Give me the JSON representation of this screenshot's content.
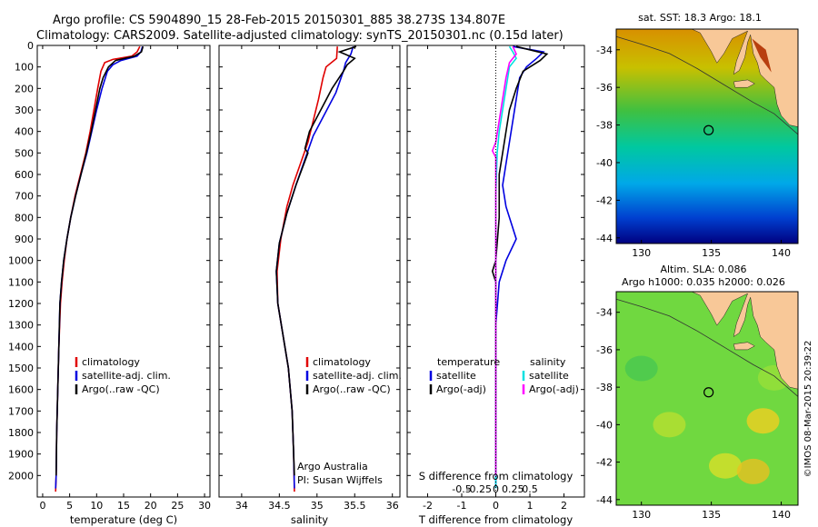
{
  "header": {
    "line1": "Argo profile: CS 5904890_15 28-Feb-2015 20150301_885 38.273S 134.807E",
    "line2": "Climatology: CARS2009. Satellite-adjusted climatology: synTS_20150301.nc (0.15d later)"
  },
  "colors": {
    "climatology": "#e00000",
    "satellite": "#0000e0",
    "argo": "#000000",
    "argo_s": "#ff00ff",
    "sat_s": "#00e0e0",
    "land": "#f8c898"
  },
  "chart_data": [
    {
      "type": "line",
      "name": "temperature-profile",
      "xlabel": "temperature (deg C)",
      "ylabel": "",
      "xlim": [
        -1,
        31
      ],
      "ylim": [
        2100,
        0
      ],
      "xticks": [
        0,
        5,
        10,
        15,
        20,
        25,
        30
      ],
      "yticks": [
        0,
        100,
        200,
        300,
        400,
        500,
        600,
        700,
        800,
        900,
        1000,
        1100,
        1200,
        1300,
        1400,
        1500,
        1600,
        1700,
        1800,
        1900,
        2000
      ],
      "legend": [
        "climatology",
        "satellite-adj. clim.",
        "Argo(..raw -QC)"
      ],
      "series": [
        {
          "name": "climatology",
          "color": "#e00000",
          "points": [
            [
              18.0,
              5
            ],
            [
              17.5,
              30
            ],
            [
              16.5,
              50
            ],
            [
              13.0,
              65
            ],
            [
              11.5,
              80
            ],
            [
              10.8,
              120
            ],
            [
              10.2,
              200
            ],
            [
              9.5,
              300
            ],
            [
              8.8,
              400
            ],
            [
              8.0,
              500
            ],
            [
              7.0,
              600
            ],
            [
              6.0,
              700
            ],
            [
              5.2,
              800
            ],
            [
              4.5,
              900
            ],
            [
              4.0,
              1000
            ],
            [
              3.6,
              1100
            ],
            [
              3.3,
              1200
            ],
            [
              3.0,
              1400
            ],
            [
              2.8,
              1600
            ],
            [
              2.6,
              1800
            ],
            [
              2.5,
              2000
            ],
            [
              2.4,
              2075
            ]
          ]
        },
        {
          "name": "satellite-adj. clim.",
          "color": "#0000e0",
          "points": [
            [
              18.5,
              5
            ],
            [
              18.2,
              30
            ],
            [
              17.5,
              50
            ],
            [
              14.5,
              70
            ],
            [
              13.0,
              90
            ],
            [
              12.0,
              120
            ],
            [
              11.0,
              200
            ],
            [
              10.0,
              300
            ],
            [
              9.1,
              400
            ],
            [
              8.2,
              500
            ],
            [
              7.1,
              600
            ],
            [
              6.1,
              700
            ],
            [
              5.2,
              800
            ],
            [
              4.5,
              900
            ],
            [
              3.9,
              1000
            ],
            [
              3.5,
              1100
            ],
            [
              3.2,
              1200
            ],
            [
              3.0,
              1400
            ],
            [
              2.8,
              1600
            ],
            [
              2.6,
              1800
            ],
            [
              2.5,
              2000
            ],
            [
              2.4,
              2060
            ]
          ]
        },
        {
          "name": "Argo(..raw -QC)",
          "color": "#000000",
          "points": [
            [
              18.6,
              5
            ],
            [
              18.3,
              30
            ],
            [
              17.0,
              50
            ],
            [
              13.5,
              70
            ],
            [
              12.2,
              100
            ],
            [
              11.2,
              150
            ],
            [
              10.6,
              200
            ],
            [
              9.8,
              300
            ],
            [
              9.0,
              400
            ],
            [
              8.1,
              500
            ],
            [
              7.1,
              600
            ],
            [
              6.1,
              700
            ],
            [
              5.2,
              800
            ],
            [
              4.5,
              900
            ],
            [
              3.9,
              1000
            ],
            [
              3.5,
              1100
            ],
            [
              3.2,
              1200
            ],
            [
              3.0,
              1400
            ],
            [
              2.8,
              1600
            ],
            [
              2.6,
              1800
            ],
            [
              2.5,
              2000
            ]
          ]
        }
      ]
    },
    {
      "type": "line",
      "name": "salinity-profile",
      "xlabel": "salinity",
      "ylabel": "",
      "xlim": [
        33.7,
        36.1
      ],
      "ylim": [
        2100,
        0
      ],
      "xticks": [
        34,
        34.5,
        35,
        35.5,
        36
      ],
      "xticklabels": [
        "34",
        "34.5",
        "35",
        "35.5",
        "36"
      ],
      "legend": [
        "climatology",
        "satellite-adj. clim.",
        "Argo(..raw -QC)"
      ],
      "annotation": [
        "Argo Australia",
        "PI: Susan Wijffels"
      ],
      "series": [
        {
          "name": "climatology",
          "color": "#e00000",
          "points": [
            [
              35.27,
              5
            ],
            [
              35.26,
              60
            ],
            [
              35.12,
              100
            ],
            [
              35.08,
              150
            ],
            [
              35.02,
              250
            ],
            [
              34.95,
              350
            ],
            [
              34.88,
              450
            ],
            [
              34.78,
              550
            ],
            [
              34.68,
              650
            ],
            [
              34.6,
              750
            ],
            [
              34.52,
              900
            ],
            [
              34.47,
              1050
            ],
            [
              34.48,
              1200
            ],
            [
              34.55,
              1350
            ],
            [
              34.62,
              1500
            ],
            [
              34.67,
              1700
            ],
            [
              34.69,
              1900
            ],
            [
              34.7,
              2075
            ]
          ]
        },
        {
          "name": "satellite-adj. clim.",
          "color": "#0000e0",
          "points": [
            [
              35.48,
              5
            ],
            [
              35.45,
              40
            ],
            [
              35.38,
              80
            ],
            [
              35.35,
              120
            ],
            [
              35.25,
              220
            ],
            [
              35.1,
              320
            ],
            [
              34.95,
              420
            ],
            [
              34.85,
              520
            ],
            [
              34.72,
              650
            ],
            [
              34.6,
              780
            ],
            [
              34.5,
              920
            ],
            [
              34.46,
              1050
            ],
            [
              34.48,
              1200
            ],
            [
              34.55,
              1350
            ],
            [
              34.62,
              1500
            ],
            [
              34.67,
              1700
            ],
            [
              34.69,
              1900
            ],
            [
              34.7,
              2060
            ]
          ]
        },
        {
          "name": "Argo(..raw -QC)",
          "color": "#000000",
          "points": [
            [
              35.52,
              5
            ],
            [
              35.3,
              30
            ],
            [
              35.5,
              60
            ],
            [
              35.4,
              90
            ],
            [
              35.35,
              120
            ],
            [
              35.2,
              200
            ],
            [
              35.05,
              300
            ],
            [
              34.9,
              400
            ],
            [
              34.84,
              480
            ],
            [
              34.88,
              500
            ],
            [
              34.72,
              650
            ],
            [
              34.6,
              780
            ],
            [
              34.5,
              920
            ],
            [
              34.46,
              1050
            ],
            [
              34.48,
              1200
            ],
            [
              34.55,
              1350
            ],
            [
              34.62,
              1500
            ],
            [
              34.67,
              1700
            ],
            [
              34.69,
              1900
            ],
            [
              34.7,
              2000
            ]
          ]
        }
      ]
    },
    {
      "type": "line",
      "name": "difference-profile",
      "xlabel": "T difference from climatology",
      "xlabel2": "S difference from climatology",
      "xlim": [
        -2.6,
        2.6
      ],
      "ylim": [
        2100,
        0
      ],
      "xticks": [
        -2,
        -1,
        0,
        1,
        2
      ],
      "xticks2": [
        -0.5,
        -0.25,
        0,
        0.25,
        0.5
      ],
      "xticklabels2": [
        "-0.5",
        "-0.25",
        "0",
        "0.25",
        "0.5"
      ],
      "legend_left": {
        "title": "temperature",
        "items": [
          "satellite",
          "Argo(-adj)"
        ]
      },
      "legend_right": {
        "title": "salinity",
        "items": [
          "satellite",
          "Argo(-adj)"
        ]
      },
      "series": [
        {
          "name": "T satellite",
          "color": "#0000e0",
          "points": [
            [
              0.5,
              5
            ],
            [
              1.4,
              30
            ],
            [
              1.2,
              60
            ],
            [
              0.9,
              100
            ],
            [
              0.7,
              150
            ],
            [
              0.6,
              250
            ],
            [
              0.5,
              350
            ],
            [
              0.4,
              450
            ],
            [
              0.3,
              550
            ],
            [
              0.2,
              650
            ],
            [
              0.3,
              750
            ],
            [
              0.5,
              850
            ],
            [
              0.6,
              900
            ],
            [
              0.3,
              1000
            ],
            [
              0.1,
              1100
            ],
            [
              0.0,
              1300
            ],
            [
              0.0,
              2060
            ]
          ]
        },
        {
          "name": "T Argo(-adj)",
          "color": "#000000",
          "points": [
            [
              0.6,
              5
            ],
            [
              1.5,
              40
            ],
            [
              1.3,
              70
            ],
            [
              0.8,
              120
            ],
            [
              0.6,
              200
            ],
            [
              0.4,
              300
            ],
            [
              0.3,
              400
            ],
            [
              0.2,
              500
            ],
            [
              0.1,
              600
            ],
            [
              0.1,
              800
            ],
            [
              0.0,
              1000
            ],
            [
              -0.1,
              1050
            ],
            [
              0.0,
              1100
            ],
            [
              0.0,
              2000
            ]
          ]
        },
        {
          "name": "S satellite",
          "color": "#00e0e0",
          "points": [
            [
              0.2,
              5
            ],
            [
              0.25,
              30
            ],
            [
              0.3,
              60
            ],
            [
              0.2,
              100
            ],
            [
              0.15,
              200
            ],
            [
              0.1,
              300
            ],
            [
              0.05,
              400
            ],
            [
              0.02,
              500
            ],
            [
              0.0,
              700
            ],
            [
              0.0,
              2060
            ]
          ]
        },
        {
          "name": "S Argo(-adj)",
          "color": "#ff00ff",
          "points": [
            [
              0.25,
              5
            ],
            [
              0.3,
              40
            ],
            [
              0.2,
              80
            ],
            [
              0.15,
              150
            ],
            [
              0.1,
              250
            ],
            [
              0.05,
              350
            ],
            [
              0.0,
              450
            ],
            [
              -0.05,
              490
            ],
            [
              0.0,
              520
            ],
            [
              0.0,
              2000
            ]
          ]
        }
      ]
    },
    {
      "type": "heatmap",
      "name": "sst-map",
      "title": "sat. SST: 18.3  Argo: 18.1",
      "xticks": [
        130,
        135,
        140
      ],
      "yticks": [
        -34,
        -36,
        -38,
        -40,
        -42,
        -44
      ],
      "xlim": [
        128.2,
        141.2
      ],
      "ylim": [
        -44.3,
        -32.9
      ],
      "marker": [
        134.807,
        -38.273
      ]
    },
    {
      "type": "heatmap",
      "name": "sla-map",
      "title1": "Altim. SLA: 0.086",
      "title2": "Argo h1000: 0.035 h2000: 0.026",
      "xticks": [
        130,
        135,
        140
      ],
      "yticks": [
        -34,
        -36,
        -38,
        -40,
        -42,
        -44
      ],
      "xlim": [
        128.2,
        141.2
      ],
      "ylim": [
        -44.3,
        -32.9
      ],
      "marker": [
        134.807,
        -38.273
      ]
    }
  ],
  "side_caption": "©IMOS 08-Mar-2015 20:39:22"
}
